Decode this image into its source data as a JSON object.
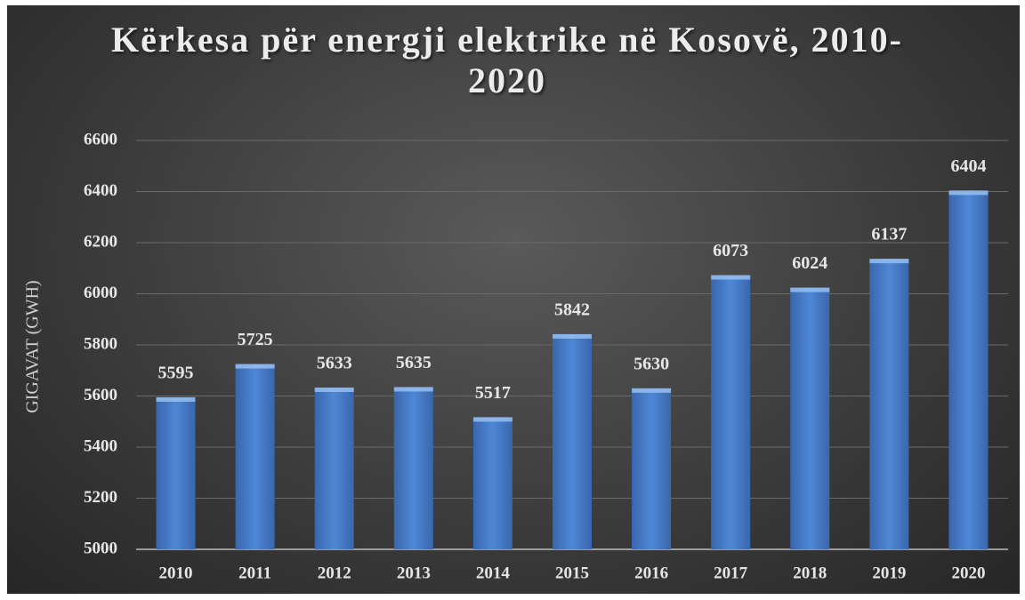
{
  "chart_data": {
    "type": "bar",
    "title": "Kërkesa për energji elektrike në Kosovë, 2010-2020",
    "ylabel": "GIGAVAT (GWH)",
    "categories": [
      "2010",
      "2011",
      "2012",
      "2013",
      "2014",
      "2015",
      "2016",
      "2017",
      "2018",
      "2019",
      "2020"
    ],
    "values": [
      5595,
      5725,
      5633,
      5635,
      5517,
      5842,
      5630,
      6073,
      6024,
      6137,
      6404
    ],
    "color": "#4f87d6",
    "ylim": [
      5000,
      6600
    ],
    "yticks": [
      5000,
      5200,
      5400,
      5600,
      5800,
      6000,
      6200,
      6400,
      6600
    ],
    "grid": true
  }
}
